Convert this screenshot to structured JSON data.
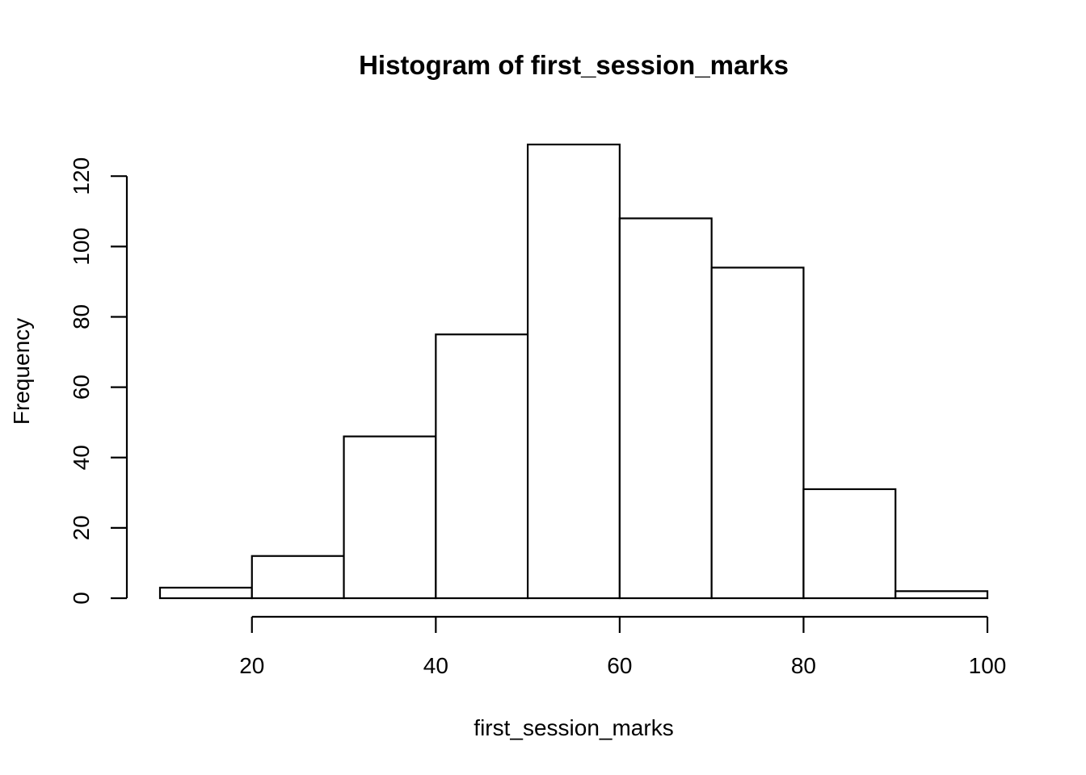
{
  "chart_data": {
    "type": "bar",
    "subtype": "histogram",
    "title": "Histogram of first_session_marks",
    "xlabel": "first_session_marks",
    "ylabel": "Frequency",
    "bins": [
      {
        "start": 10,
        "end": 20,
        "count": 3
      },
      {
        "start": 20,
        "end": 30,
        "count": 12
      },
      {
        "start": 30,
        "end": 40,
        "count": 46
      },
      {
        "start": 40,
        "end": 50,
        "count": 75
      },
      {
        "start": 50,
        "end": 60,
        "count": 129
      },
      {
        "start": 60,
        "end": 70,
        "count": 108
      },
      {
        "start": 70,
        "end": 80,
        "count": 94
      },
      {
        "start": 80,
        "end": 90,
        "count": 31
      },
      {
        "start": 90,
        "end": 100,
        "count": 2
      }
    ],
    "xlim": [
      10,
      100
    ],
    "ylim": [
      0,
      129
    ],
    "x_ticks": [
      20,
      40,
      60,
      80,
      100
    ],
    "y_ticks": [
      0,
      20,
      40,
      60,
      80,
      100,
      120
    ],
    "x_tick_labels": [
      "20",
      "40",
      "60",
      "80",
      "100"
    ],
    "y_tick_labels": [
      "0",
      "20",
      "40",
      "60",
      "80",
      "100",
      "120"
    ],
    "grid": false,
    "colors": {
      "bar_fill": "#ffffff",
      "bar_stroke": "#000000"
    }
  }
}
